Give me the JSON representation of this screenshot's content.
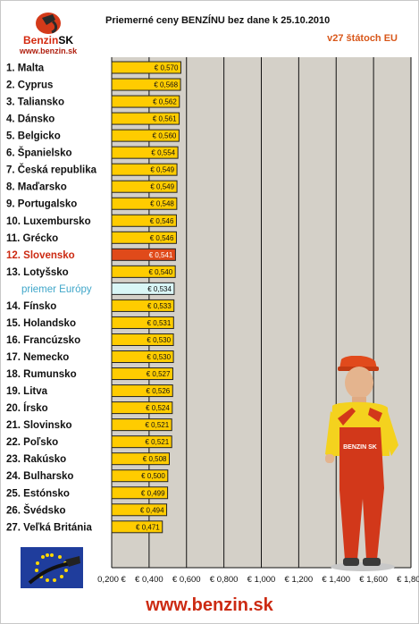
{
  "logo": {
    "brand": "Benzin",
    "brand_suffix": "SK",
    "url": "www.benzin.sk"
  },
  "header": {
    "title": "Priemerné ceny BENZÍNU bez dane k 25.10.2010",
    "subtitle": "v27 štátoch EU"
  },
  "footer": {
    "url": "www.benzin.sk"
  },
  "colors": {
    "bar": "#ffcc00",
    "bar_highlight": "#e04a1a",
    "bar_average": "#d9f6f6",
    "plot_bg": "#d4d0c8",
    "label_highlight": "#cc2a12",
    "label_average": "#3fa6c9"
  },
  "chart_data": {
    "type": "bar",
    "orientation": "horizontal",
    "title": "Priemerné ceny BENZÍNU bez dane k 25.10.2010",
    "subtitle": "v27 štátoch EU",
    "xlim": [
      0.2,
      1.8
    ],
    "x_ticks": [
      "0,200 €",
      "€ 0,400",
      "€ 0,600",
      "€ 0,800",
      "€ 1,000",
      "€ 1,200",
      "€ 1,400",
      "€ 1,600",
      "€ 1,800"
    ],
    "x_tick_values": [
      0.2,
      0.4,
      0.6,
      0.8,
      1.0,
      1.2,
      1.4,
      1.6,
      1.8
    ],
    "grid": "vertical",
    "categories": [
      "1. Malta",
      "2. Cyprus",
      "3. Taliansko",
      "4. Dánsko",
      "5. Belgicko",
      "6. Španielsko",
      "7. Česká republika",
      "8. Maďarsko",
      "9. Portugalsko",
      "10. Luxembursko",
      "11. Grécko",
      "12. Slovensko",
      "13. Lotyšsko",
      "priemer Európy",
      "14. Fínsko",
      "15. Holandsko",
      "16. Francúzsko",
      "17. Nemecko",
      "18. Rumunsko",
      "19. Litva",
      "20. Írsko",
      "21. Slovinsko",
      "22. Poľsko",
      "23. Rakúsko",
      "24. Bulharsko",
      "25. Estónsko",
      "26. Švédsko",
      "27. Veľká Británia"
    ],
    "values": [
      0.57,
      0.568,
      0.562,
      0.561,
      0.56,
      0.554,
      0.549,
      0.549,
      0.548,
      0.546,
      0.546,
      0.541,
      0.54,
      0.534,
      0.533,
      0.531,
      0.53,
      0.53,
      0.527,
      0.526,
      0.524,
      0.521,
      0.521,
      0.508,
      0.5,
      0.499,
      0.494,
      0.471
    ],
    "value_labels": [
      "€ 0,570",
      "€ 0,568",
      "€ 0,562",
      "€ 0,561",
      "€ 0,560",
      "€ 0,554",
      "€ 0,549",
      "€ 0,549",
      "€ 0,548",
      "€ 0,546",
      "€ 0,546",
      "€ 0,541",
      "€ 0,540",
      "€ 0,534",
      "€ 0,533",
      "€ 0,531",
      "€ 0,530",
      "€ 0,530",
      "€ 0,527",
      "€ 0,526",
      "€ 0,524",
      "€ 0,521",
      "€ 0,521",
      "€ 0,508",
      "€ 0,500",
      "€ 0,499",
      "€ 0,494",
      "€ 0,471"
    ],
    "highlight": "12. Slovensko",
    "average": "priemer Európy"
  }
}
